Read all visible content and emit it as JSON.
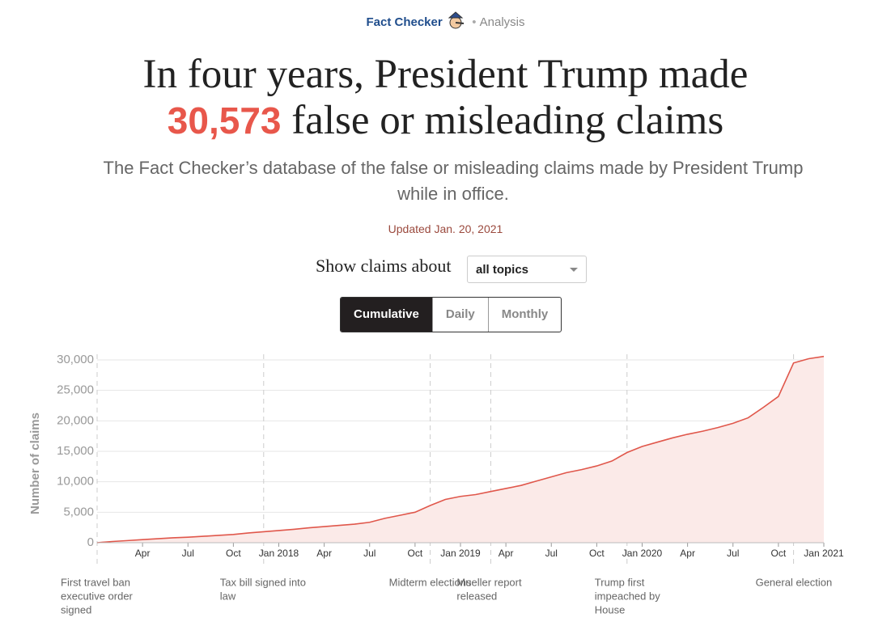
{
  "header": {
    "brand": "Fact Checker",
    "section": "Analysis"
  },
  "headline": {
    "line1": "In four years, President Trump made",
    "number": "30,573",
    "line2": "false or misleading claims"
  },
  "subtitle": "The Fact Checker’s database of the false or misleading claims made by President Trump while in office.",
  "updated": "Updated Jan. 20, 2021",
  "filter": {
    "label": "Show claims about",
    "selected": "all topics"
  },
  "tabs": [
    "Cumulative",
    "Daily",
    "Monthly"
  ],
  "chart_data": {
    "type": "area",
    "y_label": "Number of claims",
    "color": "#e0574b",
    "fill": "#fbeae8",
    "grid": true,
    "x": [
      "2017-01",
      "2017-02",
      "2017-03",
      "2017-04",
      "2017-05",
      "2017-06",
      "2017-07",
      "2017-08",
      "2017-09",
      "2017-10",
      "2017-11",
      "2017-12",
      "2018-01",
      "2018-02",
      "2018-03",
      "2018-04",
      "2018-05",
      "2018-06",
      "2018-07",
      "2018-08",
      "2018-09",
      "2018-10",
      "2018-11",
      "2018-12",
      "2019-01",
      "2019-02",
      "2019-03",
      "2019-04",
      "2019-05",
      "2019-06",
      "2019-07",
      "2019-08",
      "2019-09",
      "2019-10",
      "2019-11",
      "2019-12",
      "2020-01",
      "2020-02",
      "2020-03",
      "2020-04",
      "2020-05",
      "2020-06",
      "2020-07",
      "2020-08",
      "2020-09",
      "2020-10",
      "2020-11",
      "2020-12",
      "2021-01"
    ],
    "values": [
      0,
      200,
      350,
      500,
      650,
      800,
      900,
      1050,
      1200,
      1350,
      1600,
      1800,
      2000,
      2200,
      2450,
      2650,
      2850,
      3050,
      3350,
      4000,
      4500,
      5000,
      6100,
      7100,
      7600,
      7900,
      8400,
      8900,
      9400,
      10100,
      10800,
      11500,
      12000,
      12600,
      13400,
      14800,
      15800,
      16500,
      17200,
      17800,
      18300,
      18900,
      19600,
      20500,
      22200,
      24000,
      29500,
      30200,
      30573
    ],
    "xlim": [
      "2017-01",
      "2021-01"
    ],
    "ylim": [
      0,
      30000
    ],
    "yticks": [
      0,
      {
        "value": 5000,
        "label": "5,000"
      },
      {
        "value": 10000,
        "label": "10,000"
      },
      {
        "value": 15000,
        "label": "15,000"
      },
      {
        "value": 20000,
        "label": "20,000"
      },
      {
        "value": 25000,
        "label": "25,000"
      },
      {
        "value": 30000,
        "label": "30,000"
      }
    ],
    "xticks": [
      {
        "value": "2017-04",
        "label": "Apr"
      },
      {
        "value": "2017-07",
        "label": "Jul"
      },
      {
        "value": "2017-10",
        "label": "Oct"
      },
      {
        "value": "2018-01",
        "label": "Jan 2018"
      },
      {
        "value": "2018-04",
        "label": "Apr"
      },
      {
        "value": "2018-07",
        "label": "Jul"
      },
      {
        "value": "2018-10",
        "label": "Oct"
      },
      {
        "value": "2019-01",
        "label": "Jan 2019"
      },
      {
        "value": "2019-04",
        "label": "Apr"
      },
      {
        "value": "2019-07",
        "label": "Jul"
      },
      {
        "value": "2019-10",
        "label": "Oct"
      },
      {
        "value": "2020-01",
        "label": "Jan 2020"
      },
      {
        "value": "2020-04",
        "label": "Apr"
      },
      {
        "value": "2020-07",
        "label": "Jul"
      },
      {
        "value": "2020-10",
        "label": "Oct"
      },
      {
        "value": "2021-01",
        "label": "Jan 2021"
      }
    ],
    "annotations": [
      {
        "x": "2017-01",
        "lines": [
          "First travel ban",
          "executive order",
          "signed"
        ]
      },
      {
        "x": "2017-12",
        "lines": [
          "Tax bill signed into",
          "law"
        ]
      },
      {
        "x": "2018-11",
        "lines": [
          "Midterm elections"
        ]
      },
      {
        "x": "2019-03",
        "lines": [
          "Mueller report",
          "released"
        ]
      },
      {
        "x": "2019-12",
        "lines": [
          "Trump first",
          "impeached by",
          "House"
        ]
      },
      {
        "x": "2020-11",
        "lines": [
          "General election"
        ]
      }
    ]
  }
}
